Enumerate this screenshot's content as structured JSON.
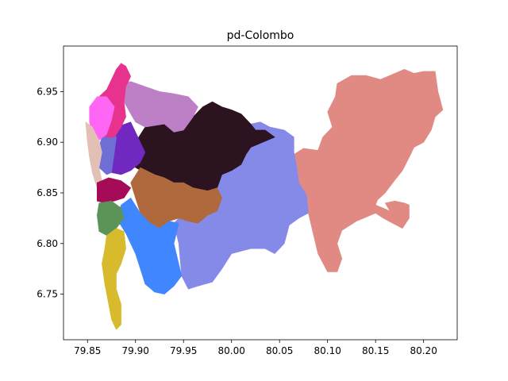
{
  "chart_data": {
    "type": "map",
    "title": "pd-Colombo",
    "xlabel": "",
    "ylabel": "",
    "xlim": [
      79.825,
      80.235
    ],
    "ylim": [
      6.705,
      6.995
    ],
    "grid": false,
    "legend": "none",
    "x_ticks": [
      "79.85",
      "79.90",
      "79.95",
      "80.00",
      "80.05",
      "80.10",
      "80.15",
      "80.20"
    ],
    "y_ticks": [
      "6.75",
      "6.80",
      "6.85",
      "6.90",
      "6.95"
    ],
    "regions": [
      {
        "color": "#e08a83",
        "points": [
          [
            80.065,
            6.888
          ],
          [
            80.075,
            6.894
          ],
          [
            80.09,
            6.892
          ],
          [
            80.095,
            6.905
          ],
          [
            80.105,
            6.915
          ],
          [
            80.1,
            6.93
          ],
          [
            80.108,
            6.945
          ],
          [
            80.11,
            6.958
          ],
          [
            80.125,
            6.966
          ],
          [
            80.14,
            6.966
          ],
          [
            80.155,
            6.962
          ],
          [
            80.165,
            6.966
          ],
          [
            80.18,
            6.972
          ],
          [
            80.19,
            6.968
          ],
          [
            80.2,
            6.97
          ],
          [
            80.212,
            6.97
          ],
          [
            80.215,
            6.95
          ],
          [
            80.22,
            6.932
          ],
          [
            80.212,
            6.925
          ],
          [
            80.208,
            6.912
          ],
          [
            80.2,
            6.9
          ],
          [
            80.19,
            6.895
          ],
          [
            80.185,
            6.885
          ],
          [
            80.178,
            6.872
          ],
          [
            80.168,
            6.86
          ],
          [
            80.16,
            6.85
          ],
          [
            80.152,
            6.843
          ],
          [
            80.15,
            6.838
          ],
          [
            80.158,
            6.835
          ],
          [
            80.165,
            6.832
          ],
          [
            80.16,
            6.84
          ],
          [
            80.17,
            6.842
          ],
          [
            80.18,
            6.84
          ],
          [
            80.185,
            6.838
          ],
          [
            80.185,
            6.825
          ],
          [
            80.178,
            6.815
          ],
          [
            80.168,
            6.82
          ],
          [
            80.158,
            6.825
          ],
          [
            80.15,
            6.83
          ],
          [
            80.13,
            6.822
          ],
          [
            80.115,
            6.813
          ],
          [
            80.11,
            6.8
          ],
          [
            80.115,
            6.785
          ],
          [
            80.11,
            6.772
          ],
          [
            80.1,
            6.772
          ],
          [
            80.09,
            6.79
          ],
          [
            80.085,
            6.81
          ],
          [
            80.08,
            6.83
          ],
          [
            80.078,
            6.848
          ],
          [
            80.07,
            6.86
          ],
          [
            80.068,
            6.875
          ]
        ]
      },
      {
        "color": "#8589e8",
        "points": [
          [
            80.02,
            6.918
          ],
          [
            80.03,
            6.92
          ],
          [
            80.04,
            6.915
          ],
          [
            80.055,
            6.912
          ],
          [
            80.065,
            6.905
          ],
          [
            80.065,
            6.89
          ],
          [
            80.068,
            6.875
          ],
          [
            80.07,
            6.86
          ],
          [
            80.078,
            6.848
          ],
          [
            80.08,
            6.83
          ],
          [
            80.07,
            6.825
          ],
          [
            80.06,
            6.818
          ],
          [
            80.055,
            6.8
          ],
          [
            80.045,
            6.79
          ],
          [
            80.035,
            6.795
          ],
          [
            80.02,
            6.795
          ],
          [
            80.0,
            6.79
          ],
          [
            79.99,
            6.775
          ],
          [
            79.98,
            6.762
          ],
          [
            79.965,
            6.758
          ],
          [
            79.955,
            6.755
          ],
          [
            79.948,
            6.768
          ],
          [
            79.945,
            6.8
          ],
          [
            79.94,
            6.82
          ],
          [
            79.95,
            6.83
          ],
          [
            79.965,
            6.835
          ],
          [
            79.975,
            6.838
          ],
          [
            79.985,
            6.855
          ],
          [
            79.99,
            6.868
          ],
          [
            80.0,
            6.872
          ],
          [
            80.01,
            6.882
          ],
          [
            80.015,
            6.892
          ],
          [
            80.02,
            6.905
          ]
        ]
      },
      {
        "color": "#2b1320",
        "points": [
          [
            79.91,
            6.915
          ],
          [
            79.93,
            6.918
          ],
          [
            79.94,
            6.91
          ],
          [
            79.95,
            6.912
          ],
          [
            79.96,
            6.925
          ],
          [
            79.97,
            6.935
          ],
          [
            79.98,
            6.94
          ],
          [
            79.99,
            6.935
          ],
          [
            80.0,
            6.932
          ],
          [
            80.01,
            6.928
          ],
          [
            80.02,
            6.918
          ],
          [
            80.025,
            6.912
          ],
          [
            80.035,
            6.912
          ],
          [
            80.045,
            6.905
          ],
          [
            80.02,
            6.895
          ],
          [
            80.015,
            6.888
          ],
          [
            80.01,
            6.878
          ],
          [
            80.0,
            6.872
          ],
          [
            79.99,
            6.868
          ],
          [
            79.985,
            6.855
          ],
          [
            79.975,
            6.852
          ],
          [
            79.96,
            6.855
          ],
          [
            79.95,
            6.86
          ],
          [
            79.94,
            6.86
          ],
          [
            79.93,
            6.865
          ],
          [
            79.92,
            6.868
          ],
          [
            79.91,
            6.87
          ],
          [
            79.9,
            6.875
          ],
          [
            79.895,
            6.885
          ],
          [
            79.9,
            6.9
          ]
        ]
      },
      {
        "color": "#bd80c6",
        "points": [
          [
            79.885,
            6.958
          ],
          [
            79.895,
            6.96
          ],
          [
            79.91,
            6.955
          ],
          [
            79.925,
            6.95
          ],
          [
            79.94,
            6.948
          ],
          [
            79.955,
            6.945
          ],
          [
            79.965,
            6.935
          ],
          [
            79.96,
            6.925
          ],
          [
            79.95,
            6.912
          ],
          [
            79.94,
            6.91
          ],
          [
            79.93,
            6.918
          ],
          [
            79.91,
            6.915
          ],
          [
            79.9,
            6.92
          ],
          [
            79.895,
            6.928
          ],
          [
            79.888,
            6.94
          ]
        ]
      },
      {
        "color": "#b0693c",
        "points": [
          [
            79.905,
            6.875
          ],
          [
            79.92,
            6.868
          ],
          [
            79.93,
            6.865
          ],
          [
            79.94,
            6.86
          ],
          [
            79.95,
            6.86
          ],
          [
            79.96,
            6.855
          ],
          [
            79.975,
            6.852
          ],
          [
            79.985,
            6.855
          ],
          [
            79.99,
            6.845
          ],
          [
            79.985,
            6.832
          ],
          [
            79.975,
            6.828
          ],
          [
            79.965,
            6.82
          ],
          [
            79.955,
            6.822
          ],
          [
            79.945,
            6.825
          ],
          [
            79.935,
            6.822
          ],
          [
            79.925,
            6.815
          ],
          [
            79.915,
            6.82
          ],
          [
            79.905,
            6.83
          ],
          [
            79.9,
            6.845
          ],
          [
            79.895,
            6.86
          ]
        ]
      },
      {
        "color": "#3f86ff",
        "points": [
          [
            79.895,
            6.845
          ],
          [
            79.905,
            6.83
          ],
          [
            79.915,
            6.82
          ],
          [
            79.925,
            6.815
          ],
          [
            79.935,
            6.822
          ],
          [
            79.945,
            6.82
          ],
          [
            79.94,
            6.8
          ],
          [
            79.945,
            6.78
          ],
          [
            79.948,
            6.768
          ],
          [
            79.94,
            6.758
          ],
          [
            79.93,
            6.75
          ],
          [
            79.92,
            6.752
          ],
          [
            79.91,
            6.76
          ],
          [
            79.905,
            6.775
          ],
          [
            79.9,
            6.79
          ],
          [
            79.89,
            6.81
          ],
          [
            79.88,
            6.825
          ],
          [
            79.885,
            6.838
          ]
        ]
      },
      {
        "color": "#7028c1",
        "points": [
          [
            79.88,
            6.915
          ],
          [
            79.895,
            6.92
          ],
          [
            79.9,
            6.91
          ],
          [
            79.905,
            6.9
          ],
          [
            79.91,
            6.89
          ],
          [
            79.905,
            6.88
          ],
          [
            79.895,
            6.872
          ],
          [
            79.885,
            6.868
          ],
          [
            79.875,
            6.87
          ],
          [
            79.875,
            6.89
          ]
        ]
      },
      {
        "color": "#6e6ed4",
        "points": [
          [
            79.865,
            6.905
          ],
          [
            79.875,
            6.912
          ],
          [
            79.88,
            6.905
          ],
          [
            79.878,
            6.89
          ],
          [
            79.875,
            6.87
          ],
          [
            79.87,
            6.868
          ],
          [
            79.862,
            6.875
          ],
          [
            79.86,
            6.89
          ]
        ]
      },
      {
        "color": "#e8338e",
        "points": [
          [
            79.862,
            6.945
          ],
          [
            79.87,
            6.952
          ],
          [
            79.875,
            6.962
          ],
          [
            79.88,
            6.972
          ],
          [
            79.885,
            6.978
          ],
          [
            79.89,
            6.975
          ],
          [
            79.895,
            6.965
          ],
          [
            79.89,
            6.955
          ],
          [
            79.888,
            6.94
          ],
          [
            79.89,
            6.925
          ],
          [
            79.885,
            6.915
          ],
          [
            79.878,
            6.905
          ],
          [
            79.87,
            6.905
          ],
          [
            79.865,
            6.915
          ],
          [
            79.862,
            6.93
          ]
        ]
      },
      {
        "color": "#ff66f4",
        "points": [
          [
            79.852,
            6.935
          ],
          [
            79.86,
            6.945
          ],
          [
            79.87,
            6.945
          ],
          [
            79.878,
            6.935
          ],
          [
            79.875,
            6.922
          ],
          [
            79.87,
            6.908
          ],
          [
            79.862,
            6.902
          ],
          [
            79.855,
            6.908
          ],
          [
            79.852,
            6.92
          ]
        ]
      },
      {
        "color": "#e2c0b5",
        "points": [
          [
            79.848,
            6.92
          ],
          [
            79.855,
            6.915
          ],
          [
            79.862,
            6.902
          ],
          [
            79.865,
            6.89
          ],
          [
            79.862,
            6.875
          ],
          [
            79.865,
            6.862
          ],
          [
            79.86,
            6.855
          ],
          [
            79.855,
            6.87
          ],
          [
            79.852,
            6.885
          ],
          [
            79.85,
            6.9
          ]
        ]
      },
      {
        "color": "#a60b58",
        "points": [
          [
            79.86,
            6.86
          ],
          [
            79.872,
            6.865
          ],
          [
            79.885,
            6.862
          ],
          [
            79.895,
            6.855
          ],
          [
            79.888,
            6.845
          ],
          [
            79.878,
            6.842
          ],
          [
            79.868,
            6.84
          ],
          [
            79.86,
            6.842
          ]
        ]
      },
      {
        "color": "#5b9359",
        "points": [
          [
            79.862,
            6.84
          ],
          [
            79.875,
            6.842
          ],
          [
            79.885,
            6.835
          ],
          [
            79.888,
            6.825
          ],
          [
            79.88,
            6.815
          ],
          [
            79.87,
            6.808
          ],
          [
            79.862,
            6.812
          ],
          [
            79.86,
            6.828
          ]
        ]
      },
      {
        "color": "#d8bb2c",
        "points": [
          [
            79.87,
            6.808
          ],
          [
            79.88,
            6.815
          ],
          [
            79.888,
            6.812
          ],
          [
            79.89,
            6.795
          ],
          [
            79.885,
            6.78
          ],
          [
            79.88,
            6.77
          ],
          [
            79.88,
            6.755
          ],
          [
            79.885,
            6.74
          ],
          [
            79.885,
            6.72
          ],
          [
            79.88,
            6.715
          ],
          [
            79.875,
            6.725
          ],
          [
            79.872,
            6.74
          ],
          [
            79.868,
            6.76
          ],
          [
            79.865,
            6.78
          ],
          [
            79.868,
            6.795
          ]
        ]
      }
    ]
  }
}
